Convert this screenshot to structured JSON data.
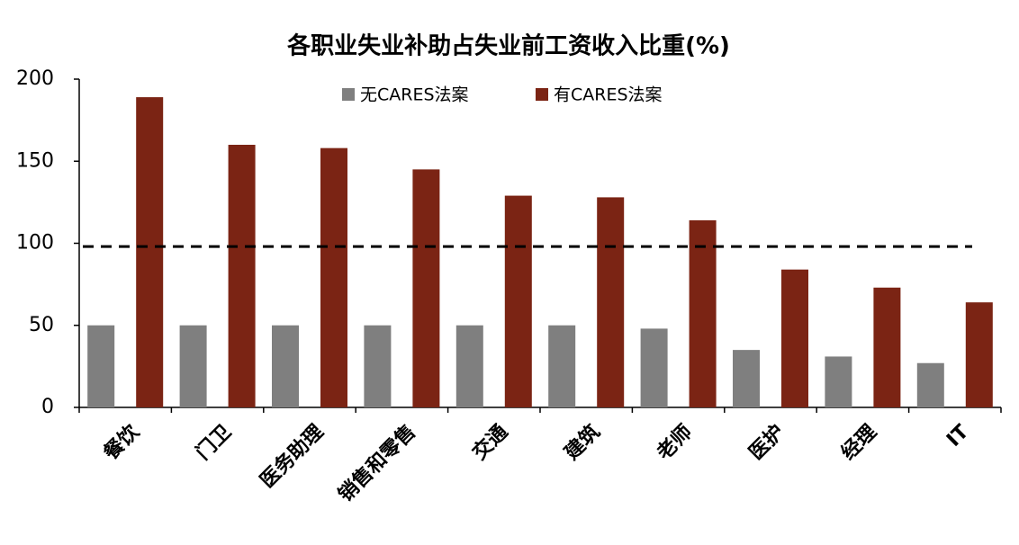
{
  "chart_data": {
    "type": "bar",
    "title": "各职业失业补助占失业前工资收入比重(%)",
    "categories": [
      "餐饮",
      "门卫",
      "医务助理",
      "销售和零售",
      "交通",
      "建筑",
      "老师",
      "医护",
      "经理",
      "IT"
    ],
    "series": [
      {
        "name": "无CARES法案",
        "color": "#7f7f7f",
        "values": [
          50,
          50,
          50,
          50,
          50,
          50,
          48,
          35,
          31,
          27
        ]
      },
      {
        "name": "有CARES法案",
        "color": "#7b2414",
        "values": [
          189,
          160,
          158,
          145,
          129,
          128,
          114,
          84,
          73,
          64
        ]
      }
    ],
    "reference_line": 98,
    "ylim": [
      0,
      200
    ],
    "yticks": [
      0,
      50,
      100,
      150,
      200
    ]
  }
}
